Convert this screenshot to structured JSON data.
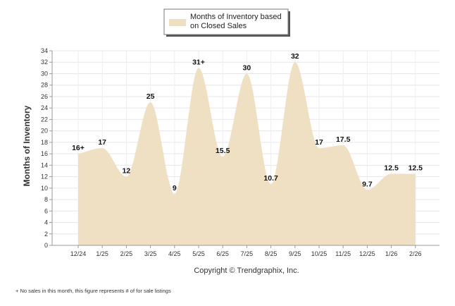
{
  "chart_data": {
    "type": "area",
    "title": "",
    "legend": [
      "Months of Inventory based",
      "on Closed Sales"
    ],
    "xlabel": "",
    "ylabel": "Months of Inventory",
    "ylim": [
      0,
      34
    ],
    "ytick_step": 2,
    "grid": true,
    "categories": [
      "12/24",
      "1/25",
      "2/25",
      "3/25",
      "4/25",
      "5/25",
      "6/25",
      "7/25",
      "8/25",
      "9/25",
      "10/25",
      "11/25",
      "12/25",
      "1/26",
      "2/26"
    ],
    "series": [
      {
        "name": "Months of Inventory based on Closed Sales",
        "values": [
          16,
          17,
          12,
          25,
          9,
          31,
          15.5,
          30,
          10.7,
          32,
          17,
          17.5,
          9.7,
          12.5,
          12.5
        ],
        "labels": [
          "16+",
          "17",
          "12",
          "25",
          "9",
          "31+",
          "15.5",
          "30",
          "10.7",
          "32",
          "17",
          "17.5",
          "9.7",
          "12.5",
          "12.5"
        ],
        "color": "#efdfc3"
      }
    ]
  },
  "copyright": "Copyright © Trendgraphix, Inc.",
  "footnote": "+ No sales in this month, this figure represents # of for sale listings"
}
